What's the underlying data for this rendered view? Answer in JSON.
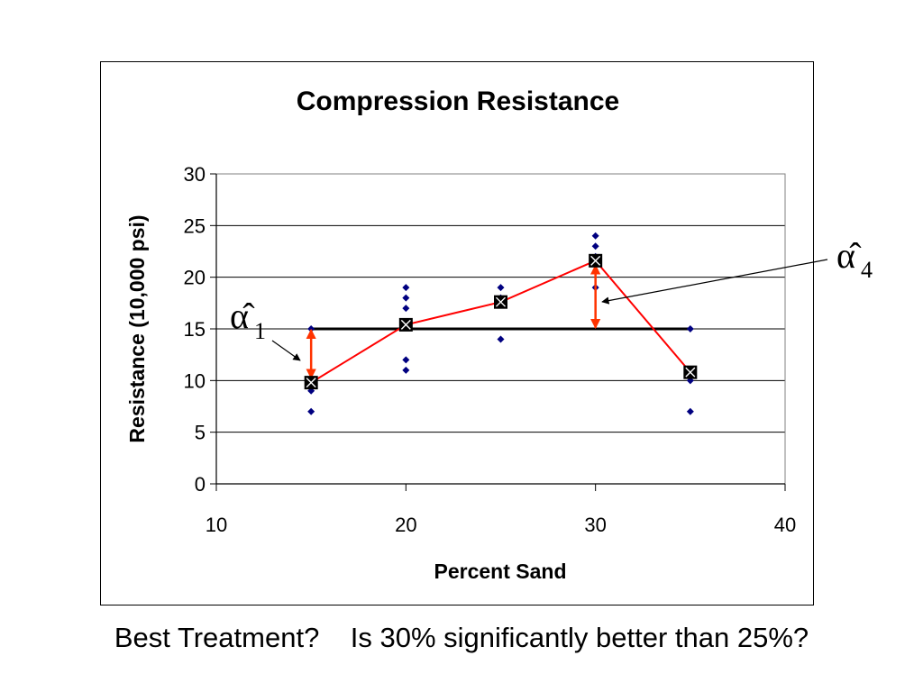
{
  "chart_data": {
    "type": "scatter",
    "title": "Compression Resistance",
    "xlabel": "Percent Sand",
    "ylabel": "Resistance (10,000 psi)",
    "xlim": [
      10,
      40
    ],
    "ylim": [
      0,
      30
    ],
    "x_ticks": [
      10,
      20,
      30,
      40
    ],
    "y_ticks": [
      0,
      5,
      10,
      15,
      20,
      25,
      30
    ],
    "grid": "horizontal",
    "legend": "none",
    "series": [
      {
        "kind": "observations",
        "color": "#000080",
        "points": [
          [
            15,
            7
          ],
          [
            15,
            9
          ],
          [
            15,
            10
          ],
          [
            15,
            15
          ],
          [
            20,
            11
          ],
          [
            20,
            12
          ],
          [
            20,
            17
          ],
          [
            20,
            18
          ],
          [
            20,
            19
          ],
          [
            25,
            14
          ],
          [
            25,
            18
          ],
          [
            25,
            19
          ],
          [
            30,
            19
          ],
          [
            30,
            22
          ],
          [
            30,
            23
          ],
          [
            30,
            24
          ],
          [
            35,
            7
          ],
          [
            35,
            10
          ],
          [
            35,
            11
          ],
          [
            35,
            15
          ]
        ]
      },
      {
        "kind": "treatment-means",
        "color": "#ff0000",
        "points": [
          [
            15,
            9.8
          ],
          [
            20,
            15.4
          ],
          [
            25,
            17.6
          ],
          [
            30,
            21.6
          ],
          [
            35,
            10.8
          ]
        ]
      },
      {
        "kind": "grand-mean",
        "color": "#000000",
        "x": [
          15,
          35
        ],
        "y": 15
      }
    ],
    "effect_arrows": [
      {
        "x": 15,
        "from": 15,
        "to": 9.8,
        "color": "#ff3300"
      },
      {
        "x": 30,
        "from": 15,
        "to": 21.6,
        "color": "#ff3300"
      }
    ],
    "annotations": [
      {
        "symbol": "α̂",
        "subscript": "1"
      },
      {
        "symbol": "α̂",
        "subscript": "4"
      }
    ]
  },
  "footer": {
    "question1": "Best Treatment?",
    "question2": "Is 30% significantly better than 25%?"
  }
}
